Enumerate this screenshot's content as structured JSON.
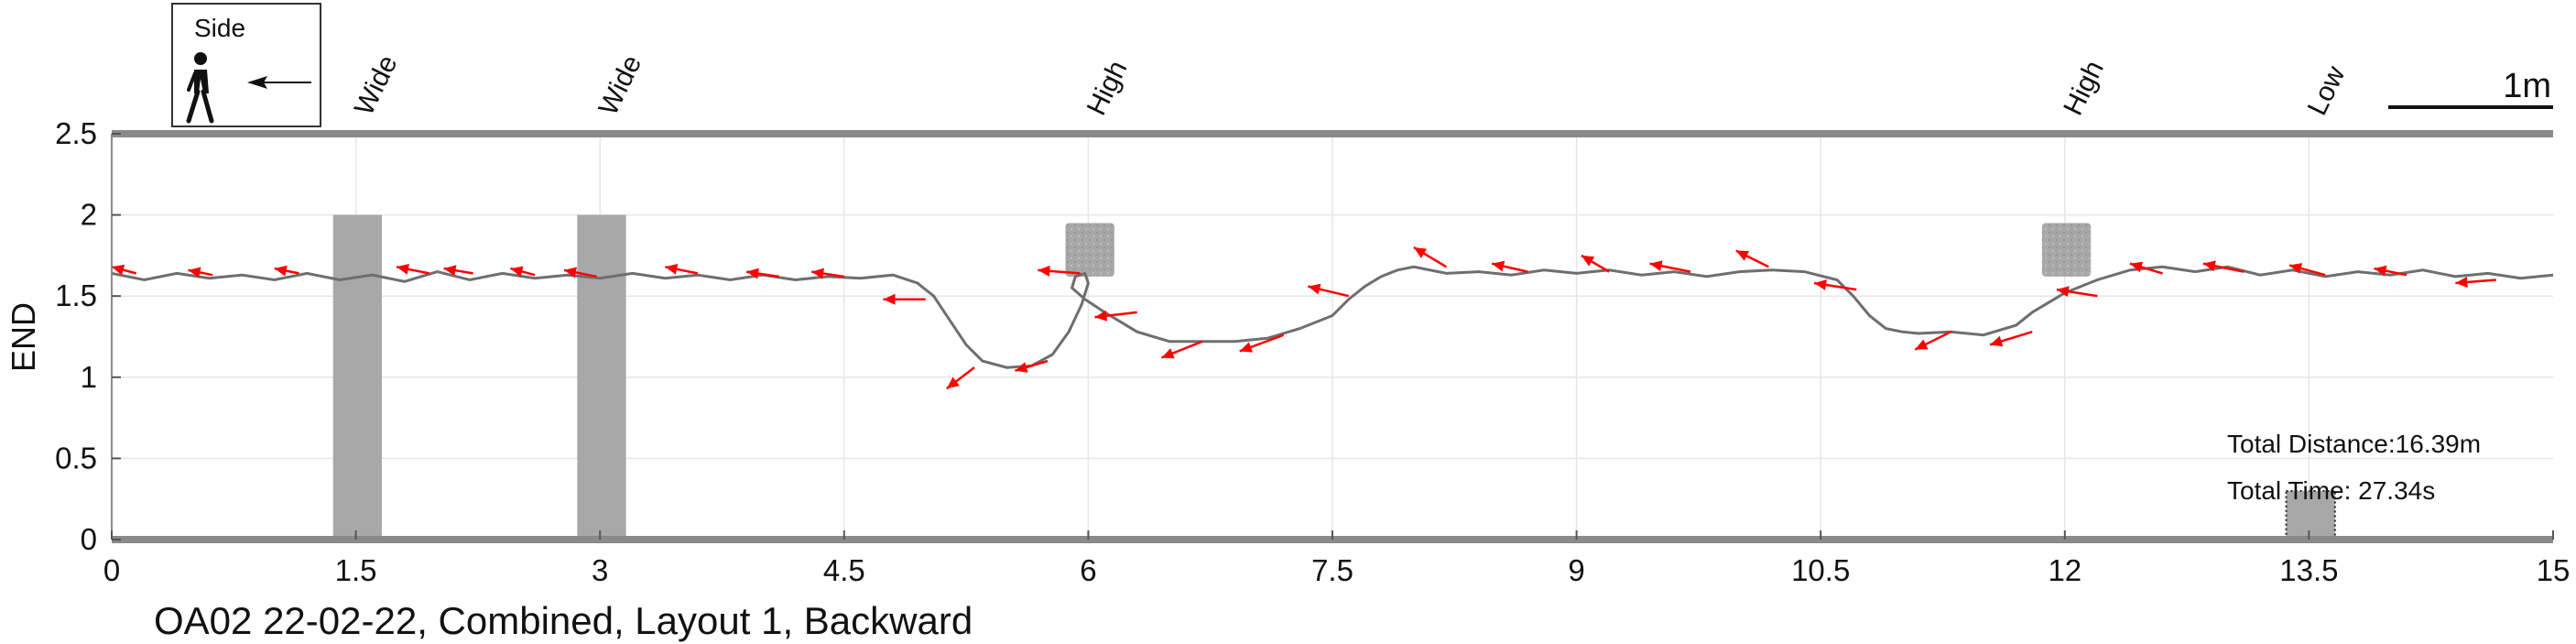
{
  "chart_data": {
    "type": "line",
    "title": "",
    "xlabel": "",
    "ylabel": "END",
    "xlim": [
      0,
      15
    ],
    "ylim": [
      0,
      2.5
    ],
    "x_ticks": [
      0,
      1.5,
      3,
      4.5,
      6,
      7.5,
      9,
      10.5,
      12,
      13.5,
      15
    ],
    "x_tick_labels": [
      "0",
      "1.5",
      "3",
      "4.5",
      "6",
      "7.5",
      "9",
      "10.5",
      "12",
      "13.5",
      "15"
    ],
    "y_ticks": [
      0,
      0.5,
      1,
      1.5,
      2,
      2.5
    ],
    "y_tick_labels": [
      "0",
      "0.5",
      "1",
      "1.5",
      "2",
      "2.5"
    ],
    "grid": true,
    "path": {
      "x": [
        0,
        0.2,
        0.4,
        0.6,
        0.8,
        1.0,
        1.2,
        1.4,
        1.6,
        1.8,
        2.0,
        2.2,
        2.4,
        2.6,
        2.8,
        3.0,
        3.2,
        3.4,
        3.6,
        3.8,
        4.0,
        4.2,
        4.4,
        4.6,
        4.8,
        4.95,
        5.05,
        5.15,
        5.25,
        5.35,
        5.5,
        5.65,
        5.78,
        5.88,
        5.96,
        6.0,
        5.98,
        5.92,
        5.9,
        5.98,
        6.1,
        6.3,
        6.5,
        6.7,
        6.9,
        7.1,
        7.3,
        7.5,
        7.6,
        7.7,
        7.8,
        7.9,
        8.0,
        8.2,
        8.4,
        8.6,
        8.8,
        9.0,
        9.2,
        9.4,
        9.6,
        9.8,
        10.0,
        10.2,
        10.4,
        10.6,
        10.7,
        10.8,
        10.9,
        11.0,
        11.1,
        11.3,
        11.5,
        11.7,
        11.8,
        11.9,
        12.0,
        12.2,
        12.4,
        12.6,
        12.8,
        13.0,
        13.2,
        13.4,
        13.6,
        13.8,
        14.0,
        14.2,
        14.4,
        14.6,
        14.8,
        15.0
      ],
      "y": [
        1.64,
        1.6,
        1.64,
        1.61,
        1.63,
        1.6,
        1.64,
        1.6,
        1.63,
        1.59,
        1.65,
        1.6,
        1.64,
        1.61,
        1.63,
        1.61,
        1.64,
        1.61,
        1.63,
        1.6,
        1.63,
        1.6,
        1.62,
        1.61,
        1.63,
        1.58,
        1.5,
        1.35,
        1.2,
        1.1,
        1.06,
        1.07,
        1.14,
        1.28,
        1.45,
        1.58,
        1.64,
        1.62,
        1.55,
        1.48,
        1.4,
        1.28,
        1.22,
        1.22,
        1.22,
        1.24,
        1.3,
        1.38,
        1.48,
        1.56,
        1.62,
        1.66,
        1.68,
        1.64,
        1.65,
        1.63,
        1.66,
        1.64,
        1.66,
        1.63,
        1.65,
        1.62,
        1.65,
        1.66,
        1.65,
        1.6,
        1.5,
        1.38,
        1.3,
        1.28,
        1.27,
        1.28,
        1.26,
        1.32,
        1.4,
        1.46,
        1.52,
        1.6,
        1.66,
        1.68,
        1.65,
        1.68,
        1.63,
        1.66,
        1.62,
        1.65,
        1.63,
        1.66,
        1.62,
        1.64,
        1.61,
        1.63
      ]
    },
    "heading_arrows": [
      {
        "x": 0.15,
        "y": 1.64,
        "dx": -0.15,
        "dy": 0.04
      },
      {
        "x": 0.62,
        "y": 1.63,
        "dx": -0.15,
        "dy": 0.03
      },
      {
        "x": 1.15,
        "y": 1.64,
        "dx": -0.15,
        "dy": 0.03
      },
      {
        "x": 1.95,
        "y": 1.64,
        "dx": -0.2,
        "dy": 0.04
      },
      {
        "x": 2.22,
        "y": 1.64,
        "dx": -0.18,
        "dy": 0.03
      },
      {
        "x": 2.6,
        "y": 1.63,
        "dx": -0.15,
        "dy": 0.04
      },
      {
        "x": 2.98,
        "y": 1.62,
        "dx": -0.2,
        "dy": 0.04
      },
      {
        "x": 3.6,
        "y": 1.64,
        "dx": -0.2,
        "dy": 0.04
      },
      {
        "x": 4.1,
        "y": 1.62,
        "dx": -0.2,
        "dy": 0.03
      },
      {
        "x": 4.5,
        "y": 1.62,
        "dx": -0.2,
        "dy": 0.03
      },
      {
        "x": 5.0,
        "y": 1.48,
        "dx": -0.26,
        "dy": 0.0
      },
      {
        "x": 5.3,
        "y": 1.06,
        "dx": -0.17,
        "dy": -0.13
      },
      {
        "x": 5.75,
        "y": 1.1,
        "dx": -0.2,
        "dy": -0.06
      },
      {
        "x": 5.95,
        "y": 1.64,
        "dx": -0.26,
        "dy": 0.02
      },
      {
        "x": 6.3,
        "y": 1.4,
        "dx": -0.26,
        "dy": -0.03
      },
      {
        "x": 6.7,
        "y": 1.22,
        "dx": -0.25,
        "dy": -0.1
      },
      {
        "x": 7.2,
        "y": 1.26,
        "dx": -0.27,
        "dy": -0.1
      },
      {
        "x": 7.6,
        "y": 1.5,
        "dx": -0.25,
        "dy": 0.06
      },
      {
        "x": 8.2,
        "y": 1.68,
        "dx": -0.2,
        "dy": 0.12
      },
      {
        "x": 8.7,
        "y": 1.65,
        "dx": -0.22,
        "dy": 0.05
      },
      {
        "x": 9.2,
        "y": 1.65,
        "dx": -0.17,
        "dy": 0.1
      },
      {
        "x": 9.7,
        "y": 1.65,
        "dx": -0.25,
        "dy": 0.05
      },
      {
        "x": 10.18,
        "y": 1.68,
        "dx": -0.2,
        "dy": 0.1
      },
      {
        "x": 10.72,
        "y": 1.54,
        "dx": -0.26,
        "dy": 0.04
      },
      {
        "x": 11.3,
        "y": 1.28,
        "dx": -0.22,
        "dy": -0.11
      },
      {
        "x": 11.8,
        "y": 1.28,
        "dx": -0.26,
        "dy": -0.08
      },
      {
        "x": 12.2,
        "y": 1.5,
        "dx": -0.25,
        "dy": 0.04
      },
      {
        "x": 12.6,
        "y": 1.64,
        "dx": -0.2,
        "dy": 0.06
      },
      {
        "x": 13.1,
        "y": 1.65,
        "dx": -0.25,
        "dy": 0.05
      },
      {
        "x": 13.6,
        "y": 1.63,
        "dx": -0.22,
        "dy": 0.06
      },
      {
        "x": 14.1,
        "y": 1.63,
        "dx": -0.2,
        "dy": 0.04
      },
      {
        "x": 14.65,
        "y": 1.6,
        "dx": -0.25,
        "dy": -0.02
      }
    ],
    "obstacles": [
      {
        "label": "Wide",
        "x_start": 1.36,
        "x_end": 1.66,
        "y_start": 0,
        "y_end": 2.0,
        "style": "solid"
      },
      {
        "label": "Wide",
        "x_start": 2.86,
        "x_end": 3.16,
        "y_start": 0,
        "y_end": 2.0,
        "style": "solid"
      },
      {
        "label": "High",
        "x_start": 5.86,
        "x_end": 6.16,
        "y_start": 1.62,
        "y_end": 1.95,
        "style": "rough"
      },
      {
        "label": "High",
        "x_start": 11.86,
        "x_end": 12.16,
        "y_start": 1.62,
        "y_end": 1.95,
        "style": "rough"
      },
      {
        "label": "Low",
        "x_start": 13.36,
        "x_end": 13.66,
        "y_start": 0,
        "y_end": 0.3,
        "style": "dotted"
      }
    ],
    "info_lines": [
      "Total Distance:16.39m",
      "Total Time: 27.34s"
    ],
    "legend": {
      "label": "Side",
      "icon": "walking-person-icon",
      "arrow": "left-arrow-icon"
    },
    "scale_bar": {
      "label": "1m",
      "length_m": 1
    },
    "caption": "OA02 22-02-22, Combined, Layout 1, Backward",
    "colors": {
      "path": "#6e6e6e",
      "arrows": "#ff0000",
      "obstacle": "#a8a8a8",
      "grid": "#e6e6e6",
      "axis": "#8a8a8a"
    }
  }
}
